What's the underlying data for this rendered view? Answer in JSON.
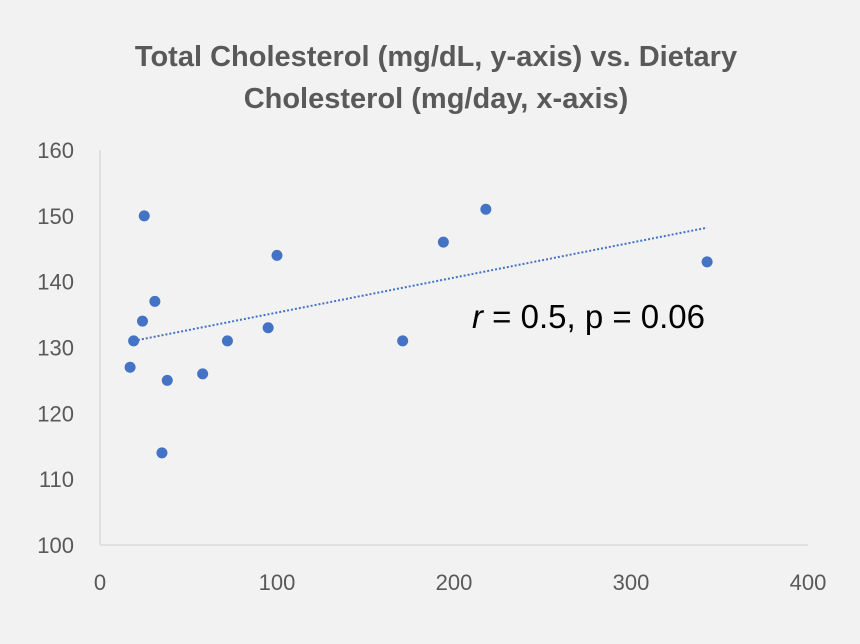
{
  "chart_data": {
    "type": "scatter",
    "title_lines": [
      "Total Cholesterol (mg/dL, y-axis) vs. Dietary",
      "Cholesterol (mg/day, x-axis)"
    ],
    "xlim": [
      0,
      400
    ],
    "ylim": [
      100,
      160
    ],
    "x_ticks": [
      0,
      100,
      200,
      300,
      400
    ],
    "y_ticks": [
      100,
      110,
      120,
      130,
      140,
      150,
      160
    ],
    "grid": false,
    "legend": "none",
    "points": [
      {
        "x": 17,
        "y": 127
      },
      {
        "x": 19,
        "y": 131
      },
      {
        "x": 24,
        "y": 134
      },
      {
        "x": 25,
        "y": 150
      },
      {
        "x": 31,
        "y": 137
      },
      {
        "x": 35,
        "y": 114
      },
      {
        "x": 38,
        "y": 125
      },
      {
        "x": 58,
        "y": 126
      },
      {
        "x": 72,
        "y": 131
      },
      {
        "x": 95,
        "y": 133
      },
      {
        "x": 100,
        "y": 144
      },
      {
        "x": 171,
        "y": 131
      },
      {
        "x": 194,
        "y": 146
      },
      {
        "x": 218,
        "y": 151
      },
      {
        "x": 343,
        "y": 143
      }
    ],
    "trendline": {
      "type": "linear",
      "style": "dotted",
      "x_start": 17,
      "y_start": 130.9,
      "x_end": 343,
      "y_end": 148.2
    },
    "annotation": {
      "r_symbol": "r",
      "rest": " = 0.5, p = 0.06"
    },
    "colors": {
      "marker": "#4472c4",
      "trendline": "#4472c4",
      "axis": "#d9d9d9",
      "background": "#f2f2f2"
    }
  }
}
